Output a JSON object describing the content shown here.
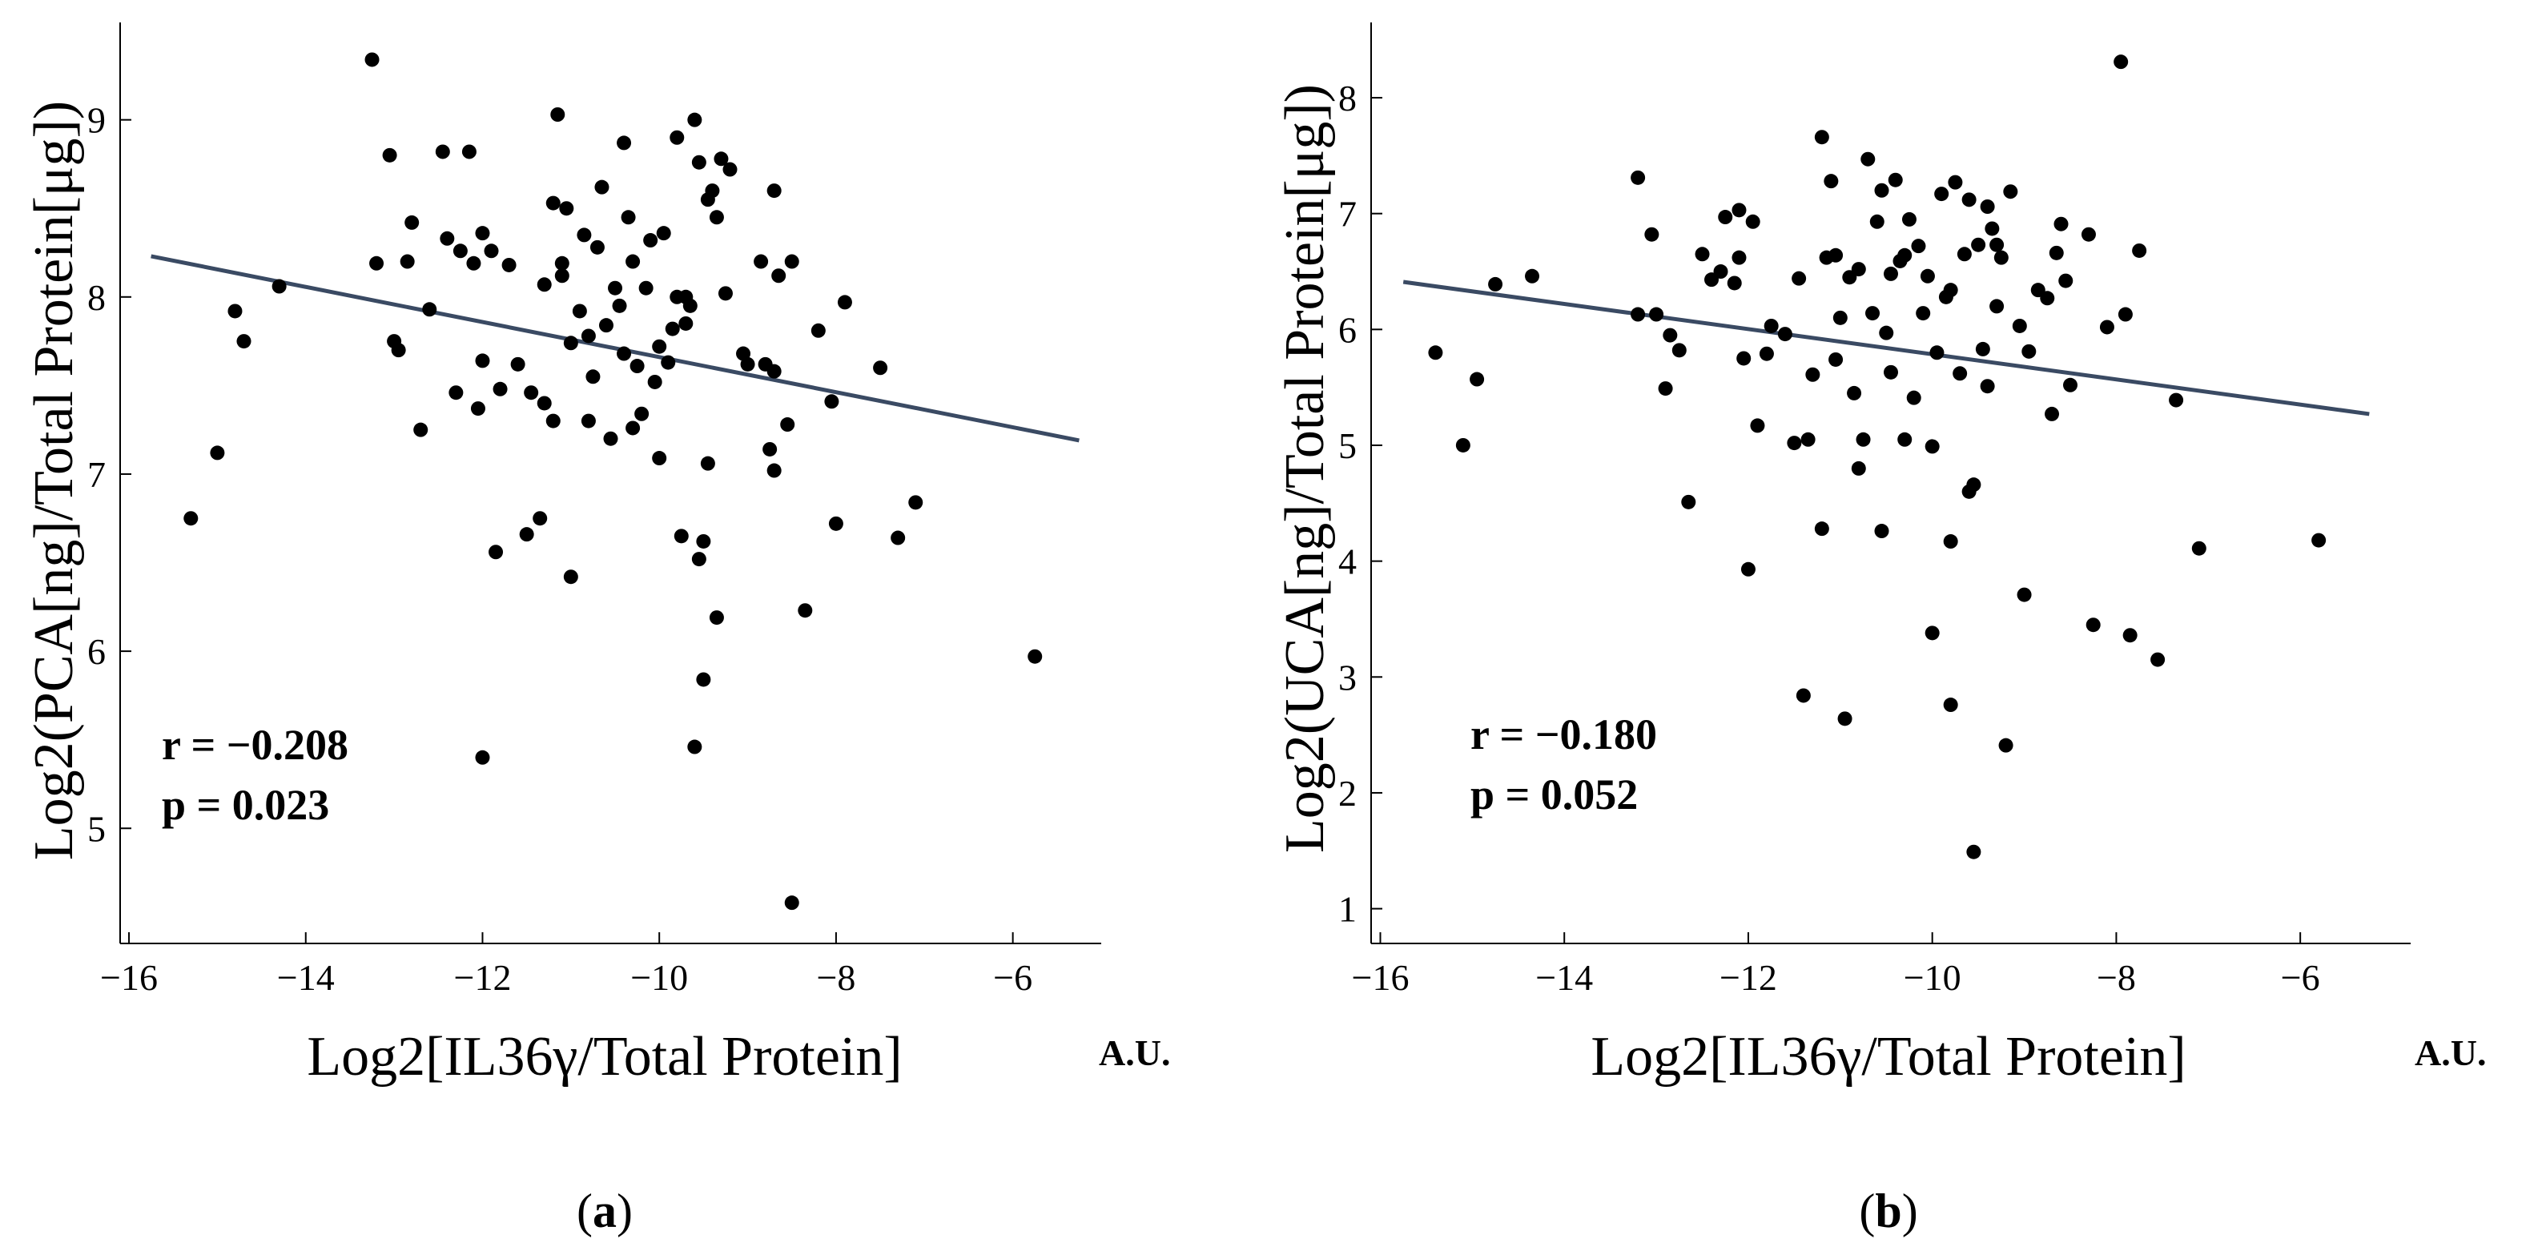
{
  "chart_data": [
    {
      "type": "scatter",
      "panel_label": "a",
      "xlabel": "Log2[IL36γ/Total Protein]",
      "ylabel": "Log2(PCA[ng]/Total Protein[μg])",
      "x_units": "A.U.",
      "xlim": [
        -16.1,
        -5.0
      ],
      "ylim": [
        4.35,
        9.55
      ],
      "xticks": [
        -16,
        -14,
        -12,
        -10,
        -8,
        -6
      ],
      "xtick_labels": [
        "−16",
        "−14",
        "−12",
        "−10",
        "−8",
        "−6"
      ],
      "yticks": [
        5,
        6,
        7,
        8,
        9
      ],
      "ytick_labels": [
        "5",
        "6",
        "7",
        "8",
        "9"
      ],
      "stats": {
        "r": "r = −0.208",
        "p": "p = 0.023"
      },
      "fit_line": {
        "x": [
          -15.75,
          -5.25
        ],
        "y": [
          8.23,
          7.19
        ],
        "color": "#3a4a63"
      },
      "points": [
        [
          -15.3,
          6.75
        ],
        [
          -15.0,
          7.12
        ],
        [
          -14.8,
          7.92
        ],
        [
          -14.7,
          7.75
        ],
        [
          -14.3,
          8.06
        ],
        [
          -13.25,
          9.34
        ],
        [
          -13.2,
          8.19
        ],
        [
          -13.05,
          8.8
        ],
        [
          -13.0,
          7.75
        ],
        [
          -12.95,
          7.7
        ],
        [
          -12.85,
          8.2
        ],
        [
          -12.8,
          8.42
        ],
        [
          -12.7,
          7.25
        ],
        [
          -12.6,
          7.93
        ],
        [
          -12.45,
          8.82
        ],
        [
          -12.4,
          8.33
        ],
        [
          -12.3,
          7.46
        ],
        [
          -12.25,
          8.26
        ],
        [
          -12.15,
          8.82
        ],
        [
          -12.1,
          8.19
        ],
        [
          -12.05,
          7.37
        ],
        [
          -12.0,
          7.64
        ],
        [
          -12.0,
          8.36
        ],
        [
          -12.0,
          5.4
        ],
        [
          -11.9,
          8.26
        ],
        [
          -11.85,
          6.56
        ],
        [
          -11.8,
          7.48
        ],
        [
          -11.7,
          8.18
        ],
        [
          -11.6,
          7.62
        ],
        [
          -11.5,
          6.66
        ],
        [
          -11.45,
          7.46
        ],
        [
          -11.35,
          6.75
        ],
        [
          -11.3,
          7.4
        ],
        [
          -11.3,
          8.07
        ],
        [
          -11.2,
          7.3
        ],
        [
          -11.2,
          8.53
        ],
        [
          -11.15,
          9.03
        ],
        [
          -11.1,
          8.19
        ],
        [
          -11.1,
          8.12
        ],
        [
          -11.05,
          8.5
        ],
        [
          -11.0,
          7.74
        ],
        [
          -11.0,
          6.42
        ],
        [
          -10.9,
          7.92
        ],
        [
          -10.85,
          8.35
        ],
        [
          -10.8,
          7.78
        ],
        [
          -10.8,
          7.3
        ],
        [
          -10.75,
          7.55
        ],
        [
          -10.7,
          8.28
        ],
        [
          -10.65,
          8.62
        ],
        [
          -10.6,
          7.84
        ],
        [
          -10.55,
          7.2
        ],
        [
          -10.5,
          8.05
        ],
        [
          -10.45,
          7.95
        ],
        [
          -10.4,
          7.68
        ],
        [
          -10.4,
          8.87
        ],
        [
          -10.35,
          8.45
        ],
        [
          -10.3,
          8.2
        ],
        [
          -10.3,
          7.26
        ],
        [
          -10.25,
          7.61
        ],
        [
          -10.2,
          7.34
        ],
        [
          -10.15,
          8.05
        ],
        [
          -10.1,
          8.32
        ],
        [
          -10.05,
          7.52
        ],
        [
          -10.0,
          7.72
        ],
        [
          -10.0,
          7.09
        ],
        [
          -9.95,
          8.36
        ],
        [
          -9.9,
          7.63
        ],
        [
          -9.85,
          7.82
        ],
        [
          -9.8,
          8.0
        ],
        [
          -9.8,
          8.9
        ],
        [
          -9.75,
          6.65
        ],
        [
          -9.7,
          8.0
        ],
        [
          -9.7,
          7.85
        ],
        [
          -9.65,
          7.95
        ],
        [
          -9.6,
          9.0
        ],
        [
          -9.6,
          5.46
        ],
        [
          -9.55,
          6.52
        ],
        [
          -9.55,
          8.76
        ],
        [
          -9.5,
          6.62
        ],
        [
          -9.5,
          5.84
        ],
        [
          -9.45,
          8.55
        ],
        [
          -9.45,
          7.06
        ],
        [
          -9.4,
          8.6
        ],
        [
          -9.35,
          8.45
        ],
        [
          -9.35,
          6.19
        ],
        [
          -9.3,
          8.78
        ],
        [
          -9.25,
          8.02
        ],
        [
          -9.2,
          8.72
        ],
        [
          -9.05,
          7.68
        ],
        [
          -9.0,
          7.62
        ],
        [
          -8.85,
          8.2
        ],
        [
          -8.8,
          7.62
        ],
        [
          -8.75,
          7.14
        ],
        [
          -8.7,
          7.02
        ],
        [
          -8.7,
          8.6
        ],
        [
          -8.7,
          7.58
        ],
        [
          -8.65,
          8.12
        ],
        [
          -8.55,
          7.28
        ],
        [
          -8.5,
          8.2
        ],
        [
          -8.5,
          4.58
        ],
        [
          -8.35,
          6.23
        ],
        [
          -8.2,
          7.81
        ],
        [
          -8.05,
          7.41
        ],
        [
          -8.0,
          6.72
        ],
        [
          -7.9,
          7.97
        ],
        [
          -7.5,
          7.6
        ],
        [
          -7.3,
          6.64
        ],
        [
          -7.1,
          6.84
        ],
        [
          -5.75,
          5.97
        ]
      ]
    },
    {
      "type": "scatter",
      "panel_label": "b",
      "xlabel": "Log2[IL36γ/Total Protein]",
      "ylabel": "Log2(UCA[ng]/Total Protein[μg])",
      "x_units": "A.U.",
      "xlim": [
        -16.1,
        -4.8
      ],
      "ylim": [
        0.7,
        8.65
      ],
      "xticks": [
        -16,
        -14,
        -12,
        -10,
        -8,
        -6
      ],
      "xtick_labels": [
        "−16",
        "−14",
        "−12",
        "−10",
        "−8",
        "−6"
      ],
      "yticks": [
        1,
        2,
        3,
        4,
        5,
        6,
        7,
        8
      ],
      "ytick_labels": [
        "1",
        "2",
        "3",
        "4",
        "5",
        "6",
        "7",
        "8"
      ],
      "stats": {
        "r": "r = −0.180",
        "p": "p = 0.052"
      },
      "fit_line": {
        "x": [
          -15.75,
          -5.25
        ],
        "y": [
          6.41,
          5.27
        ],
        "color": "#3a4a63"
      },
      "points": [
        [
          -15.4,
          5.8
        ],
        [
          -15.1,
          5.0
        ],
        [
          -14.95,
          5.57
        ],
        [
          -14.75,
          6.39
        ],
        [
          -14.35,
          6.46
        ],
        [
          -13.2,
          7.31
        ],
        [
          -13.2,
          6.13
        ],
        [
          -13.05,
          6.82
        ],
        [
          -13.0,
          6.13
        ],
        [
          -12.9,
          5.49
        ],
        [
          -12.85,
          5.95
        ],
        [
          -12.75,
          5.82
        ],
        [
          -12.65,
          4.51
        ],
        [
          -12.5,
          6.65
        ],
        [
          -12.4,
          6.43
        ],
        [
          -12.3,
          6.5
        ],
        [
          -12.25,
          6.97
        ],
        [
          -12.15,
          6.4
        ],
        [
          -12.1,
          7.03
        ],
        [
          -12.1,
          6.62
        ],
        [
          -12.05,
          5.75
        ],
        [
          -12.0,
          3.93
        ],
        [
          -11.95,
          6.93
        ],
        [
          -11.9,
          5.17
        ],
        [
          -11.8,
          5.79
        ],
        [
          -11.75,
          6.03
        ],
        [
          -11.6,
          5.96
        ],
        [
          -11.5,
          5.02
        ],
        [
          -11.45,
          6.44
        ],
        [
          -11.4,
          2.84
        ],
        [
          -11.35,
          5.05
        ],
        [
          -11.3,
          5.61
        ],
        [
          -11.2,
          4.28
        ],
        [
          -11.2,
          7.66
        ],
        [
          -11.15,
          6.62
        ],
        [
          -11.1,
          7.28
        ],
        [
          -11.05,
          5.74
        ],
        [
          -11.05,
          6.64
        ],
        [
          -11.0,
          6.1
        ],
        [
          -10.95,
          2.64
        ],
        [
          -10.9,
          6.45
        ],
        [
          -10.85,
          5.45
        ],
        [
          -10.8,
          4.8
        ],
        [
          -10.8,
          6.52
        ],
        [
          -10.75,
          5.05
        ],
        [
          -10.7,
          7.47
        ],
        [
          -10.65,
          6.14
        ],
        [
          -10.6,
          6.93
        ],
        [
          -10.55,
          4.26
        ],
        [
          -10.55,
          7.2
        ],
        [
          -10.5,
          5.97
        ],
        [
          -10.45,
          6.48
        ],
        [
          -10.45,
          5.63
        ],
        [
          -10.4,
          7.29
        ],
        [
          -10.35,
          6.59
        ],
        [
          -10.3,
          5.05
        ],
        [
          -10.3,
          6.64
        ],
        [
          -10.25,
          6.95
        ],
        [
          -10.2,
          5.41
        ],
        [
          -10.15,
          6.72
        ],
        [
          -10.1,
          6.14
        ],
        [
          -10.05,
          6.46
        ],
        [
          -10.0,
          3.38
        ],
        [
          -10.0,
          4.99
        ],
        [
          -9.95,
          5.8
        ],
        [
          -9.9,
          7.17
        ],
        [
          -9.85,
          6.28
        ],
        [
          -9.8,
          6.34
        ],
        [
          -9.8,
          4.17
        ],
        [
          -9.8,
          2.76
        ],
        [
          -9.75,
          7.27
        ],
        [
          -9.7,
          5.62
        ],
        [
          -9.65,
          6.65
        ],
        [
          -9.6,
          7.12
        ],
        [
          -9.6,
          4.6
        ],
        [
          -9.55,
          4.66
        ],
        [
          -9.55,
          1.49
        ],
        [
          -9.5,
          6.73
        ],
        [
          -9.45,
          5.83
        ],
        [
          -9.4,
          7.06
        ],
        [
          -9.4,
          5.51
        ],
        [
          -9.35,
          6.87
        ],
        [
          -9.3,
          6.73
        ],
        [
          -9.3,
          6.2
        ],
        [
          -9.25,
          6.62
        ],
        [
          -9.2,
          2.41
        ],
        [
          -9.15,
          7.19
        ],
        [
          -9.05,
          6.03
        ],
        [
          -9.0,
          3.71
        ],
        [
          -8.95,
          5.81
        ],
        [
          -8.85,
          6.34
        ],
        [
          -8.75,
          6.27
        ],
        [
          -8.7,
          5.27
        ],
        [
          -8.65,
          6.66
        ],
        [
          -8.6,
          6.91
        ],
        [
          -8.55,
          6.42
        ],
        [
          -8.5,
          5.52
        ],
        [
          -8.3,
          6.82
        ],
        [
          -8.25,
          3.45
        ],
        [
          -8.1,
          6.02
        ],
        [
          -7.95,
          8.31
        ],
        [
          -7.9,
          6.13
        ],
        [
          -7.85,
          3.36
        ],
        [
          -7.75,
          6.68
        ],
        [
          -7.55,
          3.15
        ],
        [
          -7.35,
          5.39
        ],
        [
          -7.1,
          4.11
        ],
        [
          -5.8,
          4.18
        ]
      ]
    }
  ]
}
